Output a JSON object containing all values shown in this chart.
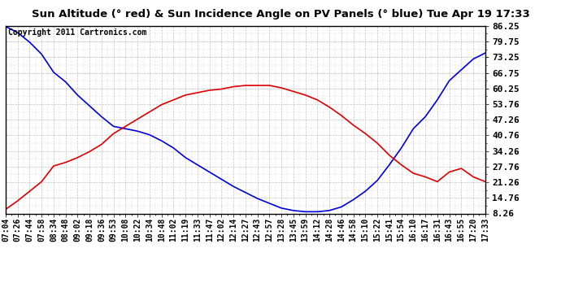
{
  "title": "Sun Altitude (° red) & Sun Incidence Angle on PV Panels (° blue) Tue Apr 19 17:33",
  "copyright": "Copyright 2011 Cartronics.com",
  "bg_color": "#ffffff",
  "plot_bg_color": "#ffffff",
  "grid_color": "#aaaaaa",
  "line_blue_color": "#0000dd",
  "line_red_color": "#dd0000",
  "yticks": [
    8.26,
    14.76,
    21.26,
    27.76,
    34.26,
    40.76,
    47.26,
    53.76,
    60.25,
    66.75,
    73.25,
    79.75,
    86.25
  ],
  "xtick_labels": [
    "07:04",
    "07:26",
    "07:44",
    "07:58",
    "08:34",
    "08:48",
    "09:02",
    "09:18",
    "09:36",
    "09:53",
    "10:08",
    "10:22",
    "10:34",
    "10:48",
    "11:02",
    "11:19",
    "11:33",
    "11:47",
    "12:02",
    "12:14",
    "12:27",
    "12:43",
    "12:57",
    "13:28",
    "13:45",
    "13:59",
    "14:12",
    "14:28",
    "14:46",
    "14:58",
    "15:10",
    "15:22",
    "15:41",
    "15:54",
    "16:10",
    "16:17",
    "16:31",
    "16:43",
    "16:55",
    "17:20",
    "17:33"
  ],
  "blue_data": [
    86.0,
    83.5,
    79.5,
    74.5,
    67.0,
    63.0,
    57.5,
    53.0,
    48.5,
    44.5,
    43.5,
    42.5,
    41.0,
    38.5,
    35.5,
    31.5,
    28.5,
    25.5,
    22.5,
    19.5,
    17.0,
    14.5,
    12.5,
    10.5,
    9.5,
    9.0,
    9.0,
    9.5,
    11.0,
    14.0,
    17.5,
    22.0,
    28.5,
    35.5,
    43.5,
    48.5,
    55.5,
    63.5,
    68.0,
    72.5,
    75.0
  ],
  "red_data": [
    10.0,
    13.5,
    17.5,
    21.5,
    28.0,
    29.5,
    31.5,
    34.0,
    37.0,
    41.5,
    44.5,
    47.5,
    50.5,
    53.5,
    55.5,
    57.5,
    58.5,
    59.5,
    60.0,
    61.0,
    61.5,
    61.5,
    61.5,
    60.5,
    59.0,
    57.5,
    55.5,
    52.5,
    49.0,
    45.0,
    41.5,
    37.5,
    32.5,
    28.5,
    25.0,
    23.5,
    21.5,
    25.5,
    27.0,
    23.5,
    21.5
  ],
  "ylim": [
    8.26,
    86.25
  ],
  "title_fontsize": 9.5,
  "copyright_fontsize": 7,
  "tick_fontsize": 7,
  "ytick_fontsize": 8,
  "line_width": 1.2
}
